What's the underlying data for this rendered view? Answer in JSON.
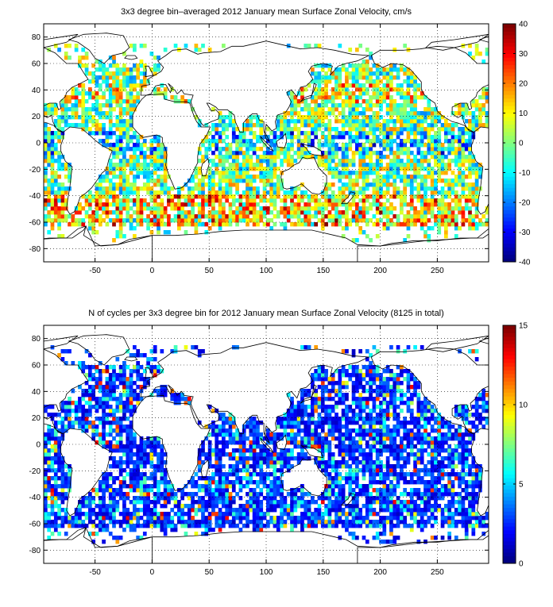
{
  "figure": {
    "panels": [
      {
        "id": "top",
        "title": "3x3 degree bin–averaged 2012 January mean Surface Zonal Velocity, cm/s"
      },
      {
        "id": "bottom",
        "title": "N of cycles per 3x3 degree bin for 2012 January mean Surface Zonal Velocity (8125 in total)"
      }
    ]
  },
  "chart_data": [
    {
      "type": "heatmap",
      "title": "3x3 degree bin–averaged 2012 January mean Surface Zonal Velocity, cm/s",
      "xlabel": "",
      "ylabel": "",
      "xlim": [
        -95,
        295
      ],
      "ylim": [
        -90,
        90
      ],
      "xticks": [
        -50,
        0,
        50,
        100,
        150,
        200,
        250
      ],
      "yticks": [
        -80,
        -60,
        -40,
        -20,
        0,
        20,
        40,
        60,
        80
      ],
      "grid": true,
      "bin_size_deg": 3,
      "colorbar": {
        "min": -40,
        "max": 40,
        "ticks": [
          -40,
          -30,
          -20,
          -10,
          0,
          10,
          20,
          30,
          40
        ],
        "colormap": "jet"
      },
      "value_distribution_note_type": "mixed",
      "coastline": true
    },
    {
      "type": "heatmap",
      "title": "N of cycles per 3x3 degree bin for 2012 January mean Surface Zonal Velocity (8125 in total)",
      "xlabel": "",
      "ylabel": "",
      "xlim": [
        -95,
        295
      ],
      "ylim": [
        -90,
        90
      ],
      "xticks": [
        -50,
        0,
        50,
        100,
        150,
        200,
        250
      ],
      "yticks": [
        -80,
        -60,
        -40,
        -20,
        0,
        20,
        40,
        60,
        80
      ],
      "grid": true,
      "bin_size_deg": 3,
      "total_cycles": 8125,
      "colorbar": {
        "min": 0,
        "max": 15,
        "ticks": [
          0,
          5,
          10,
          15
        ],
        "colormap": "jet"
      },
      "value_distribution_note_type": "low",
      "coastline": true
    }
  ]
}
